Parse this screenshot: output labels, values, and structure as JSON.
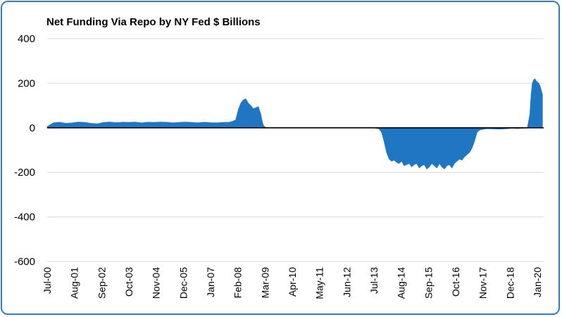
{
  "chart_data": {
    "type": "area",
    "title": "Net Funding Via Repo by NY Fed $ Billions",
    "xlabel": "",
    "ylabel": "",
    "ylim": [
      -600,
      400
    ],
    "y_ticks": [
      "400",
      "200",
      "0",
      "-200",
      "-400",
      "-600"
    ],
    "grid": "horizontal",
    "legend": "none",
    "x_tick_labels": [
      "Jul-00",
      "Aug-01",
      "Sep-02",
      "Oct-03",
      "Nov-04",
      "Dec-05",
      "Jan-07",
      "Feb-08",
      "Mar-09",
      "Apr-10",
      "May-11",
      "Jun-12",
      "Jul-13",
      "Aug-14",
      "Sep-15",
      "Oct-16",
      "Nov-17",
      "Dec-18",
      "Jan-20"
    ],
    "x_tick_dates": [
      2000.5,
      2001.58,
      2002.67,
      2003.75,
      2004.83,
      2005.92,
      2007.0,
      2008.08,
      2009.17,
      2010.25,
      2011.33,
      2012.42,
      2013.5,
      2014.58,
      2015.67,
      2016.75,
      2017.83,
      2018.92,
      2020.0
    ],
    "x_range": [
      2000.5,
      2020.25
    ],
    "color": "#1f77c4",
    "series": [
      {
        "x": [
          2000.5,
          2000.6,
          2000.75,
          2001.0,
          2001.25,
          2001.5,
          2001.75,
          2002.0,
          2002.25,
          2002.5,
          2002.75,
          2003.0,
          2003.25,
          2003.5,
          2003.75,
          2004.0,
          2004.25,
          2004.5,
          2004.75,
          2005.0,
          2005.25,
          2005.5,
          2005.75,
          2006.0,
          2006.25,
          2006.5,
          2006.75,
          2007.0,
          2007.25,
          2007.5,
          2007.75,
          2007.9,
          2008.0,
          2008.1,
          2008.2,
          2008.3,
          2008.4,
          2008.5,
          2008.6,
          2008.7,
          2008.8,
          2008.9,
          2009.0,
          2009.05,
          2009.1,
          2009.15,
          2009.2,
          2009.3,
          2010.0,
          2011.0,
          2012.0,
          2013.0,
          2013.5,
          2013.7,
          2013.8,
          2013.9,
          2014.0,
          2014.1,
          2014.2,
          2014.3,
          2014.4,
          2014.5,
          2014.6,
          2014.7,
          2014.8,
          2014.9,
          2015.0,
          2015.1,
          2015.2,
          2015.3,
          2015.4,
          2015.5,
          2015.6,
          2015.7,
          2015.8,
          2015.9,
          2016.0,
          2016.1,
          2016.2,
          2016.3,
          2016.4,
          2016.5,
          2016.6,
          2016.7,
          2016.8,
          2016.9,
          2017.0,
          2017.1,
          2017.2,
          2017.3,
          2017.4,
          2017.5,
          2017.6,
          2017.7,
          2017.8,
          2017.9,
          2018.0,
          2018.2,
          2018.5,
          2018.8,
          2019.0,
          2019.2,
          2019.4,
          2019.6,
          2019.7,
          2019.75,
          2019.8,
          2019.85,
          2019.9,
          2019.95,
          2020.0,
          2020.05,
          2020.1,
          2020.15,
          2020.2
        ],
        "values": [
          5,
          12,
          22,
          25,
          20,
          22,
          26,
          24,
          20,
          18,
          24,
          26,
          23,
          25,
          24,
          26,
          22,
          25,
          24,
          26,
          25,
          22,
          24,
          26,
          24,
          22,
          25,
          23,
          22,
          24,
          25,
          30,
          35,
          80,
          110,
          125,
          130,
          110,
          100,
          85,
          90,
          95,
          60,
          30,
          10,
          5,
          0,
          0,
          0,
          0,
          0,
          0,
          0,
          -5,
          -20,
          -60,
          -110,
          -140,
          -150,
          -145,
          -155,
          -160,
          -150,
          -170,
          -165,
          -160,
          -175,
          -165,
          -160,
          -180,
          -170,
          -165,
          -185,
          -175,
          -160,
          -170,
          -180,
          -160,
          -175,
          -185,
          -170,
          -165,
          -180,
          -160,
          -150,
          -140,
          -145,
          -130,
          -120,
          -110,
          -90,
          -60,
          -20,
          -10,
          -8,
          -5,
          -4,
          -5,
          -6,
          -4,
          -2,
          -3,
          -2,
          -1,
          60,
          150,
          200,
          215,
          220,
          210,
          205,
          200,
          190,
          170,
          150
        ]
      }
    ]
  }
}
